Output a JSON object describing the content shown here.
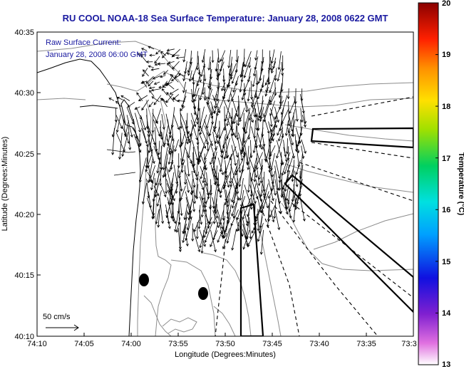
{
  "title": "RU COOL  NOAA-18  Sea Surface Temperature:  January 28, 2008 0622 GMT",
  "current_label_line1": "Raw Surface Current:",
  "current_label_line2": "January 28, 2008 06:00 GMT",
  "scale_label": "50 cm/s",
  "x_axis_label": "Longitude (Degrees:Minutes)",
  "y_axis_label": "Latitude (Degrees:Minutes)",
  "colorbar_label": "Temperature (°C)",
  "x_ticks": [
    "74:10",
    "74:05",
    "74:00",
    "73:55",
    "73:50",
    "73:45",
    "73:40",
    "73:35",
    "73:3"
  ],
  "y_ticks": [
    "40:35",
    "40:30",
    "40:25",
    "40:20",
    "40:15",
    "40:10"
  ],
  "colorbar_ticks": [
    "20",
    "19",
    "18",
    "17",
    "16",
    "15",
    "14",
    "13"
  ],
  "colors": {
    "title": "#1a1aa0",
    "land": "#ffffff",
    "contour": "#8c8c8c"
  }
}
